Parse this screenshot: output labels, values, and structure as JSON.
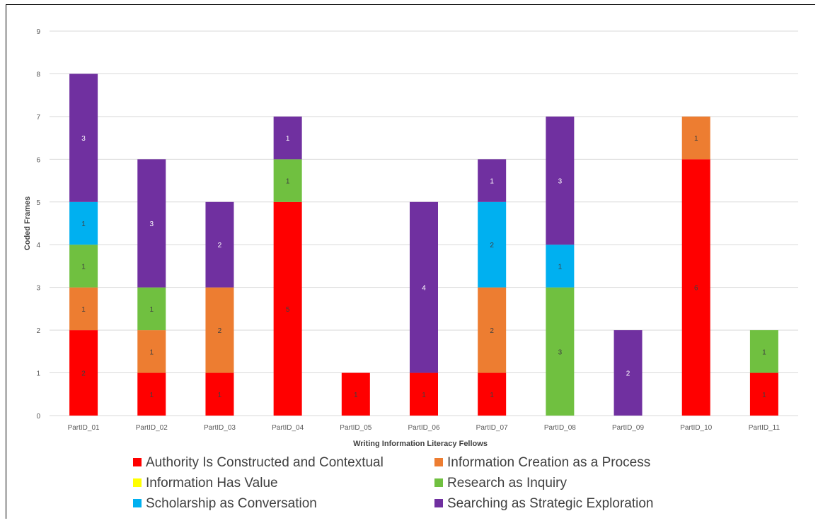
{
  "chart_data": {
    "type": "bar",
    "stacked": true,
    "title": "",
    "xlabel": "Writing Information Literacy Fellows",
    "ylabel": "Coded Frames",
    "ylim": [
      0,
      9
    ],
    "yticks": [
      0,
      1,
      2,
      3,
      4,
      5,
      6,
      7,
      8,
      9
    ],
    "grid": true,
    "legend_position": "bottom",
    "categories": [
      "PartID_01",
      "PartID_02",
      "PartID_03",
      "PartID_04",
      "PartID_05",
      "PartID_06",
      "PartID_07",
      "PartID_08",
      "PartID_09",
      "PartID_10",
      "PartID_11"
    ],
    "series": [
      {
        "name": "Authority Is Constructed and Contextual",
        "color": "#ff0000",
        "values": [
          2,
          1,
          1,
          5,
          1,
          1,
          1,
          0,
          0,
          6,
          1
        ]
      },
      {
        "name": "Information Creation as a Process",
        "color": "#ed7d31",
        "values": [
          1,
          1,
          2,
          0,
          0,
          0,
          2,
          0,
          0,
          1,
          0
        ]
      },
      {
        "name": "Information Has Value",
        "color": "#ffff00",
        "values": [
          0,
          0,
          0,
          0,
          0,
          0,
          0,
          0,
          0,
          0,
          0
        ]
      },
      {
        "name": "Research as Inquiry",
        "color": "#70c040",
        "values": [
          1,
          1,
          0,
          1,
          0,
          0,
          0,
          3,
          0,
          0,
          1
        ]
      },
      {
        "name": "Scholarship as Conversation",
        "color": "#00b0f0",
        "values": [
          1,
          0,
          0,
          0,
          0,
          0,
          2,
          1,
          0,
          0,
          0
        ]
      },
      {
        "name": "Searching as Strategic Exploration",
        "color": "#7030a0",
        "values": [
          3,
          3,
          2,
          1,
          0,
          4,
          1,
          3,
          2,
          0,
          0
        ]
      }
    ]
  }
}
